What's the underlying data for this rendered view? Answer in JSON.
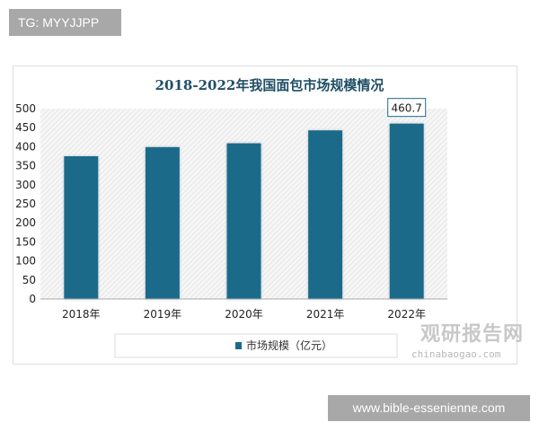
{
  "watermark_top": "TG: MYYJJPP",
  "watermark_bottom": "www.bible-essenienne.com",
  "logo": {
    "name": "观研报告网",
    "url": "chinabaogao.com"
  },
  "chart_data": {
    "type": "bar",
    "title": "2018-2022年我国面包市场规模情况",
    "categories": [
      "2018年",
      "2019年",
      "2020年",
      "2021年",
      "2022年"
    ],
    "series": [
      {
        "name": "市场规模（亿元）",
        "values": [
          375,
          399,
          409,
          443,
          460.7
        ],
        "color": "#1c6a8a"
      }
    ],
    "data_labels": [
      null,
      null,
      null,
      null,
      "460.7"
    ],
    "ylim": [
      0,
      500
    ],
    "yticks": [
      0,
      50,
      100,
      150,
      200,
      250,
      300,
      350,
      400,
      450,
      500
    ],
    "xlabel": "",
    "ylabel": "",
    "grid": false,
    "legend": "bottom",
    "background": "hatched"
  }
}
